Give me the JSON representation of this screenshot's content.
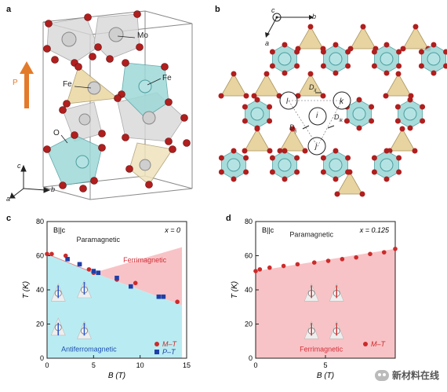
{
  "panels": {
    "a": {
      "label": "a",
      "atoms": {
        "mo": "Mo",
        "fe_left": "Fe",
        "fe_right": "Fe",
        "o": "O"
      },
      "polarization": "P",
      "axes": {
        "c": "c",
        "a": "a",
        "b": "b"
      }
    },
    "b": {
      "label": "b",
      "axes": {
        "c": "c",
        "b": "b",
        "a": "a"
      },
      "sites": {
        "i": "i",
        "j": "j",
        "k": "k",
        "l": "l"
      },
      "dm": {
        "dil": "D",
        "dil_sub": "il",
        "dik": "D",
        "dik_sub": "ik",
        "dij": "D",
        "dij_sub": "ij"
      }
    },
    "c": {
      "label": "c"
    },
    "d": {
      "label": "d"
    }
  },
  "chart_data": [
    {
      "type": "scatter",
      "panel": "c",
      "field": "B||c",
      "doping": "x = 0",
      "xlabel": "B (T)",
      "ylabel": "T (K)",
      "xlim": [
        0,
        15
      ],
      "ylim": [
        0,
        80
      ],
      "xticks": [
        0,
        5,
        10,
        15
      ],
      "yticks": [
        0,
        20,
        40,
        60,
        80
      ],
      "regions": [
        "Paramagnetic",
        "Ferrimagnetic",
        "Antiferromagnetic"
      ],
      "series": [
        {
          "name": "M–T",
          "marker": "circle",
          "color": "#cc2b2b",
          "points": [
            [
              0,
              61
            ],
            [
              0.5,
              61
            ],
            [
              2,
              60
            ],
            [
              3.5,
              55
            ],
            [
              4.5,
              52
            ],
            [
              5,
              50
            ],
            [
              7.5,
              46
            ],
            [
              9.5,
              44
            ],
            [
              12.5,
              36
            ],
            [
              14,
              33
            ]
          ]
        },
        {
          "name": "P–T",
          "marker": "square",
          "color": "#1f3fa8",
          "points": [
            [
              2.2,
              58
            ],
            [
              3.5,
              55
            ],
            [
              5,
              51
            ],
            [
              5.5,
              50
            ],
            [
              7.5,
              47
            ],
            [
              9,
              42
            ],
            [
              12,
              36
            ],
            [
              12.5,
              36
            ]
          ]
        }
      ]
    },
    {
      "type": "scatter",
      "panel": "d",
      "field": "B||c",
      "doping": "x = 0.125",
      "xlabel": "B (T)",
      "ylabel": "T (K)",
      "xlim": [
        0,
        10
      ],
      "ylim": [
        0,
        80
      ],
      "xticks": [
        0,
        5
      ],
      "yticks": [
        0,
        20,
        40,
        60,
        80
      ],
      "regions": [
        "Paramagnetic",
        "Ferrimagnetic"
      ],
      "series": [
        {
          "name": "M–T",
          "marker": "circle",
          "color": "#cc2b2b",
          "points": [
            [
              0,
              51
            ],
            [
              0.3,
              52
            ],
            [
              1,
              53
            ],
            [
              2,
              54
            ],
            [
              3,
              55
            ],
            [
              4.2,
              56
            ],
            [
              5.2,
              57
            ],
            [
              6.2,
              58
            ],
            [
              7.2,
              59
            ],
            [
              8.2,
              61
            ],
            [
              9.2,
              62
            ],
            [
              10,
              64
            ]
          ]
        }
      ]
    }
  ],
  "watermark": {
    "text": "新材料在线",
    "icon": "wechat-icon"
  }
}
